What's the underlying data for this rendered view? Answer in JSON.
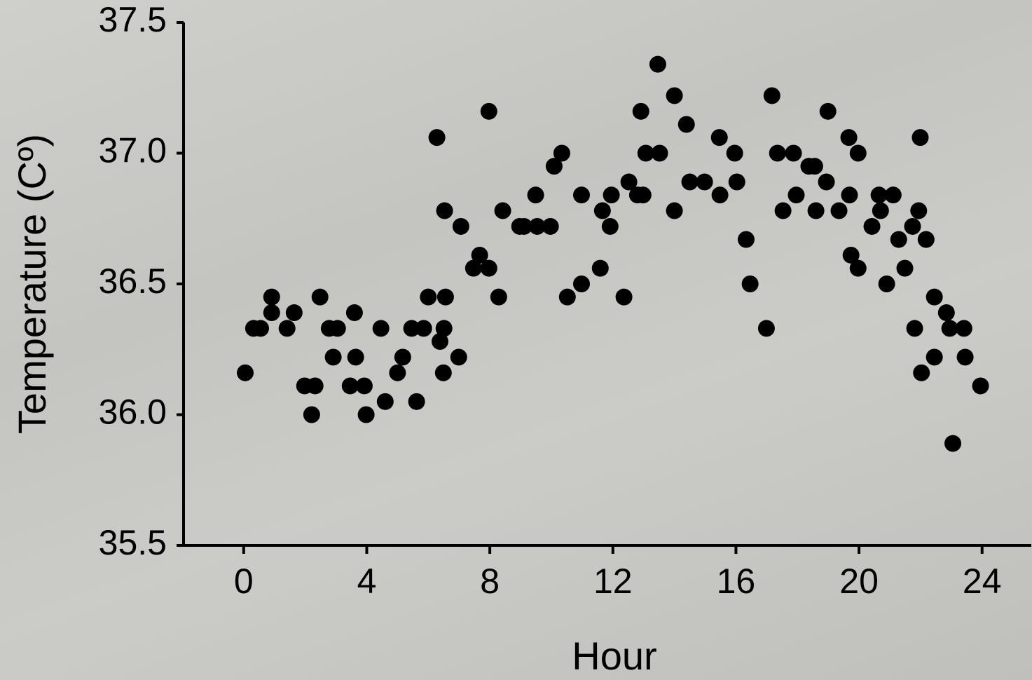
{
  "chart_data": {
    "type": "scatter",
    "x_label": "Hour",
    "y_label": "Temperature (Cº)",
    "xlim": [
      -2,
      25.6
    ],
    "ylim": [
      35.5,
      37.5
    ],
    "xticks": [
      0,
      4,
      8,
      12,
      16,
      20,
      24
    ],
    "yticks": [
      {
        "value": 35.5,
        "label": "35.5"
      },
      {
        "value": 36,
        "label": "36.0"
      },
      {
        "value": 36.5,
        "label": "36.5"
      },
      {
        "value": 37,
        "label": "37.0"
      },
      {
        "value": 37.5,
        "label": "37.5"
      }
    ],
    "color": "#000000",
    "x": [
      0.05,
      0.32,
      0.55,
      0.91,
      0.91,
      1.41,
      1.64,
      1.98,
      2.32,
      2.21,
      2.48,
      2.78,
      3.05,
      2.91,
      3.46,
      3.6,
      3.64,
      3.92,
      3.98,
      4.46,
      4.6,
      5.0,
      5.17,
      5.46,
      5.62,
      5.85,
      6.0,
      6.28,
      6.38,
      6.51,
      6.56,
      6.53,
      6.49,
      6.99,
      7.06,
      7.47,
      7.67,
      7.97,
      7.97,
      8.29,
      8.42,
      8.97,
      9.11,
      9.49,
      9.54,
      9.97,
      10.09,
      10.34,
      10.52,
      10.98,
      10.98,
      11.59,
      11.66,
      11.91,
      11.95,
      12.36,
      12.52,
      12.8,
      12.98,
      12.91,
      13.07,
      13.46,
      13.52,
      14.0,
      14.0,
      14.39,
      14.5,
      14.98,
      15.46,
      15.48,
      15.96,
      16.03,
      16.33,
      16.46,
      16.99,
      17.17,
      17.35,
      17.53,
      17.87,
      17.96,
      18.37,
      18.56,
      18.6,
      18.94,
      18.99,
      19.35,
      19.67,
      19.69,
      19.74,
      19.97,
      19.97,
      20.42,
      20.65,
      20.7,
      20.9,
      21.11,
      21.29,
      21.49,
      21.74,
      21.81,
      21.94,
      21.99,
      22.03,
      22.18,
      22.45,
      22.45,
      22.84,
      22.95,
      23.05,
      23.41,
      23.45,
      23.95
    ],
    "values": [
      36.16,
      36.33,
      36.33,
      36.45,
      36.39,
      36.33,
      36.39,
      36.11,
      36.11,
      36.0,
      36.45,
      36.33,
      36.33,
      36.22,
      36.11,
      36.39,
      36.22,
      36.11,
      36.0,
      36.33,
      36.05,
      36.16,
      36.22,
      36.33,
      36.05,
      36.33,
      36.45,
      37.06,
      36.28,
      36.33,
      36.45,
      36.78,
      36.16,
      36.22,
      36.72,
      36.56,
      36.61,
      36.56,
      37.16,
      36.45,
      36.78,
      36.72,
      36.72,
      36.84,
      36.72,
      36.72,
      36.95,
      37.0,
      36.45,
      36.5,
      36.84,
      36.56,
      36.78,
      36.72,
      36.84,
      36.45,
      36.89,
      36.84,
      36.84,
      37.16,
      37.0,
      37.34,
      37.0,
      37.22,
      36.78,
      37.11,
      36.89,
      36.89,
      37.06,
      36.84,
      37.0,
      36.89,
      36.67,
      36.5,
      36.33,
      37.22,
      37.0,
      36.78,
      37.0,
      36.84,
      36.95,
      36.95,
      36.78,
      36.89,
      37.16,
      36.78,
      37.06,
      36.84,
      36.61,
      37.0,
      36.56,
      36.72,
      36.84,
      36.78,
      36.5,
      36.84,
      36.67,
      36.56,
      36.72,
      36.33,
      36.78,
      37.06,
      36.16,
      36.67,
      36.45,
      36.22,
      36.39,
      36.33,
      35.89,
      36.33,
      36.22,
      36.11
    ]
  }
}
